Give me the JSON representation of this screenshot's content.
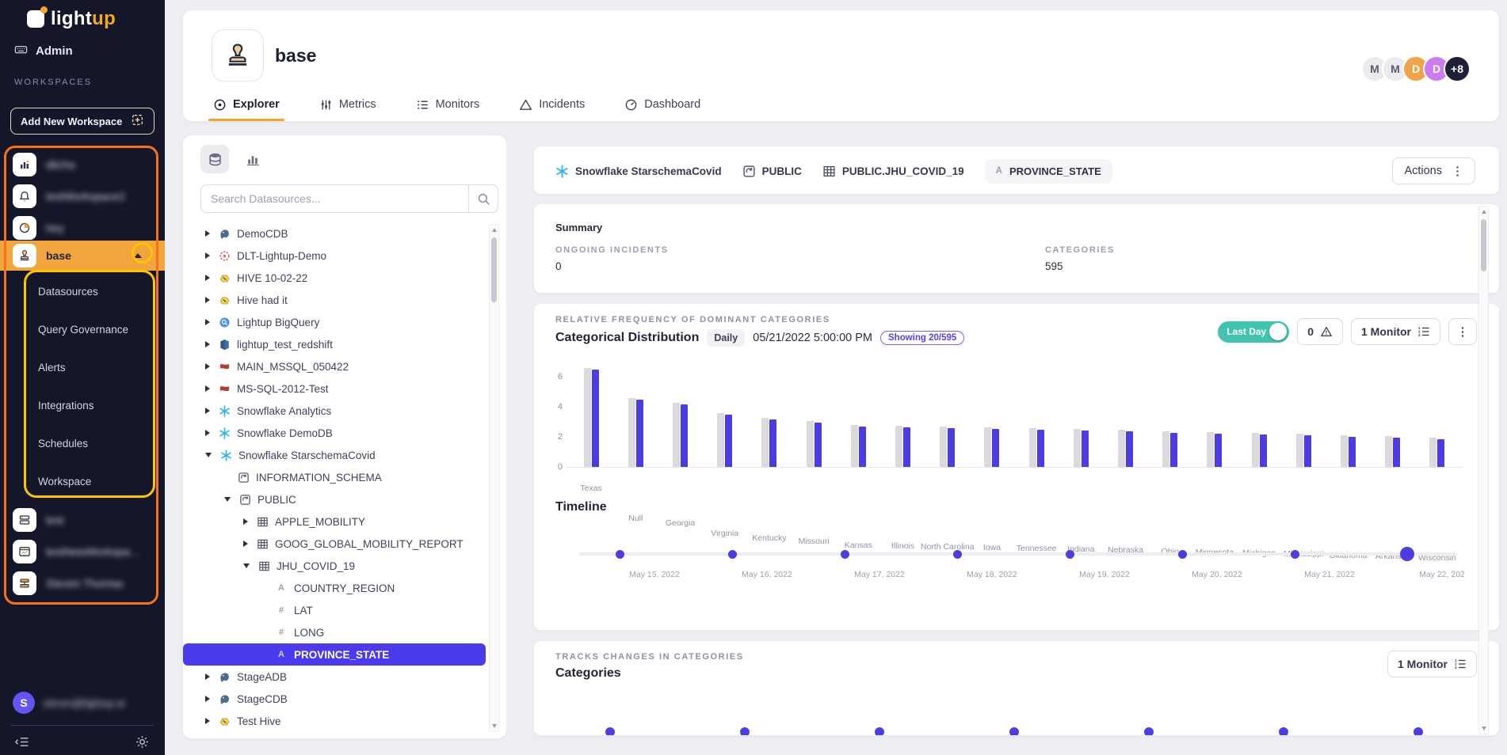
{
  "colors": {
    "sidebar_bg": "#14162a",
    "accent_orange": "#f5a623",
    "workspace_active_bg": "#f2a43d",
    "annotation_orange": "#f97316",
    "annotation_yellow": "#fdc500",
    "primary_purple": "#4b3bec",
    "bar_blue": "#4c3ce2",
    "bar_gray": "#d9d9de",
    "toggle_teal": "#41c3ad",
    "page_bg": "#edeef2",
    "snowflake_blue": "#2bb5e8"
  },
  "sidebar": {
    "logo": {
      "light": "light",
      "up": "up"
    },
    "admin_label": "Admin",
    "workspaces_label": "WORKSPACES",
    "add_workspace_label": "Add New Workspace",
    "workspaces_top": [
      {
        "icon": "building-icon",
        "label": "dlicha",
        "blurred": true
      },
      {
        "icon": "bell-icon",
        "label": "testWorkspace2",
        "blurred": true
      },
      {
        "icon": "pie-icon",
        "label": "hey",
        "blurred": true
      }
    ],
    "active_workspace": {
      "icon": "stamp-icon",
      "label": "base"
    },
    "submenu": [
      "Datasources",
      "Query Governance",
      "Alerts",
      "Integrations",
      "Schedules",
      "Workspace"
    ],
    "workspaces_bottom": [
      {
        "icon": "server-icon",
        "label": "test",
        "blurred": true
      },
      {
        "icon": "window-icon",
        "label": "testNewWorkspa...",
        "blurred": true
      },
      {
        "icon": "layout-icon",
        "label": "Steven Thomas",
        "blurred": true
      }
    ],
    "user": {
      "avatar_initial": "S",
      "email": "steven@lightup.ai",
      "blurred": true
    }
  },
  "header": {
    "title": "base",
    "tabs": [
      {
        "label": "Explorer",
        "icon": "explorer-icon",
        "active": true
      },
      {
        "label": "Metrics",
        "icon": "metrics-icon",
        "active": false
      },
      {
        "label": "Monitors",
        "icon": "monitors-icon",
        "active": false
      },
      {
        "label": "Incidents",
        "icon": "incidents-icon",
        "active": false
      },
      {
        "label": "Dashboard",
        "icon": "dashboard-icon",
        "active": false
      }
    ],
    "avatars": [
      {
        "text": "M",
        "bg": "#ebebed",
        "fg": "#5a5e6e"
      },
      {
        "text": "M",
        "bg": "#ebebed",
        "fg": "#5a5e6e"
      },
      {
        "text": "D",
        "bg": "#efa44a",
        "fg": "#ffffff"
      },
      {
        "text": "D",
        "bg": "#cb7df0",
        "fg": "#ffffff"
      },
      {
        "text": "+8",
        "bg": "#1d2036",
        "fg": "#ffffff"
      }
    ]
  },
  "tree": {
    "search_placeholder": "Search Datasources...",
    "items": [
      {
        "label": "DemoCDB",
        "level": 0,
        "icon": "postgres-icon",
        "chevron": "right"
      },
      {
        "label": "DLT-Lightup-Demo",
        "level": 0,
        "icon": "dlt-icon",
        "chevron": "right"
      },
      {
        "label": "HIVE 10-02-22",
        "level": 0,
        "icon": "hive-icon",
        "chevron": "right"
      },
      {
        "label": "Hive had it",
        "level": 0,
        "icon": "hive-icon",
        "chevron": "right"
      },
      {
        "label": "Lightup BigQuery",
        "level": 0,
        "icon": "bigquery-icon",
        "chevron": "right"
      },
      {
        "label": "lightup_test_redshift",
        "level": 0,
        "icon": "redshift-icon",
        "chevron": "right"
      },
      {
        "label": "MAIN_MSSQL_050422",
        "level": 0,
        "icon": "mssql-icon",
        "chevron": "right"
      },
      {
        "label": "MS-SQL-2012-Test",
        "level": 0,
        "icon": "mssql-icon",
        "chevron": "right"
      },
      {
        "label": "Snowflake Analytics",
        "level": 0,
        "icon": "snowflake-icon",
        "chevron": "right"
      },
      {
        "label": "Snowflake DemoDB",
        "level": 0,
        "icon": "snowflake-icon",
        "chevron": "right"
      },
      {
        "label": "Snowflake StarschemaCovid",
        "level": 0,
        "icon": "snowflake-icon",
        "chevron": "down"
      },
      {
        "label": "INFORMATION_SCHEMA",
        "level": 1,
        "icon": "schema-icon",
        "chevron": "none"
      },
      {
        "label": "PUBLIC",
        "level": 1,
        "icon": "schema-icon",
        "chevron": "down"
      },
      {
        "label": "APPLE_MOBILITY",
        "level": 2,
        "icon": "table-icon",
        "chevron": "right"
      },
      {
        "label": "GOOG_GLOBAL_MOBILITY_REPORT",
        "level": 2,
        "icon": "table-icon",
        "chevron": "right"
      },
      {
        "label": "JHU_COVID_19",
        "level": 2,
        "icon": "table-icon",
        "chevron": "down"
      },
      {
        "label": "COUNTRY_REGION",
        "level": 3,
        "icon": "type-string",
        "chevron": "none"
      },
      {
        "label": "LAT",
        "level": 3,
        "icon": "type-number",
        "chevron": "none"
      },
      {
        "label": "LONG",
        "level": 3,
        "icon": "type-number",
        "chevron": "none"
      },
      {
        "label": "PROVINCE_STATE",
        "level": 3,
        "icon": "type-string",
        "chevron": "none",
        "selected": true
      },
      {
        "label": "StageADB",
        "level": 0,
        "icon": "postgres-icon",
        "chevron": "right"
      },
      {
        "label": "StageCDB",
        "level": 0,
        "icon": "postgres-icon",
        "chevron": "right"
      },
      {
        "label": "Test Hive",
        "level": 0,
        "icon": "hive-icon",
        "chevron": "right"
      }
    ]
  },
  "breadcrumb": {
    "datasource": "Snowflake StarschemaCovid",
    "schema": "PUBLIC",
    "table": "PUBLIC.JHU_COVID_19",
    "column_type": "A",
    "column": "PROVINCE_STATE",
    "actions_label": "Actions"
  },
  "summary": {
    "title": "Summary",
    "stats": [
      {
        "label": "ONGOING INCIDENTS",
        "value": "0"
      },
      {
        "label": "CATEGORIES",
        "value": "595"
      }
    ]
  },
  "distribution": {
    "section_label": "RELATIVE FREQUENCY OF DOMINANT CATEGORIES",
    "title": "Categorical Distribution",
    "granularity": "Daily",
    "timestamp": "05/21/2022 5:00:00 PM",
    "showing": "Showing 20/595",
    "toggle_label": "Last Day",
    "incident_count": "0",
    "monitor_label": "1 Monitor"
  },
  "chart_data": [
    {
      "type": "bar",
      "title": "Categorical Distribution",
      "categories": [
        "Texas",
        "Null",
        "Georgia",
        "Virginia",
        "Kentucky",
        "Missouri",
        "Kansas",
        "Illinois",
        "North Carolina",
        "Iowa",
        "Tennessee",
        "Indiana",
        "Nebraska",
        "Ohio",
        "Minnesota",
        "Michigan",
        "Mississippi",
        "Oklahoma",
        "Arkansas",
        "Wisconsin"
      ],
      "series": [
        {
          "name": "gray",
          "color": "#d9d9de",
          "values": [
            6.5,
            4.5,
            4.15,
            3.45,
            3.15,
            2.95,
            2.7,
            2.65,
            2.6,
            2.55,
            2.5,
            2.4,
            2.35,
            2.25,
            2.2,
            2.15,
            2.1,
            2.0,
            1.95,
            1.85
          ]
        },
        {
          "name": "blue",
          "color": "#4c3ce2",
          "values": [
            6.5,
            4.5,
            4.15,
            3.45,
            3.15,
            2.95,
            2.7,
            2.65,
            2.6,
            2.55,
            2.5,
            2.4,
            2.35,
            2.25,
            2.2,
            2.15,
            2.1,
            2.0,
            1.95,
            1.85
          ]
        }
      ],
      "yticks": [
        0,
        2,
        4,
        6
      ],
      "ylim": [
        0,
        7.2
      ],
      "xlabel": "",
      "ylabel": "",
      "grid": false,
      "legend": "none"
    },
    {
      "type": "scatter",
      "title": "Timeline",
      "x": [
        "May 15, 2022",
        "May 16, 2022",
        "May 17, 2022",
        "May 18, 2022",
        "May 19, 2022",
        "May 20, 2022",
        "May 21, 2022",
        "May 22, 202"
      ],
      "note": "event dots on a horizontal timeline; last dot emphasized"
    }
  ],
  "timeline": {
    "title": "Timeline"
  },
  "categories_section": {
    "section_label": "TRACKS CHANGES IN CATEGORIES",
    "title": "Categories",
    "monitor_label": "1 Monitor",
    "dot_count": 7
  }
}
